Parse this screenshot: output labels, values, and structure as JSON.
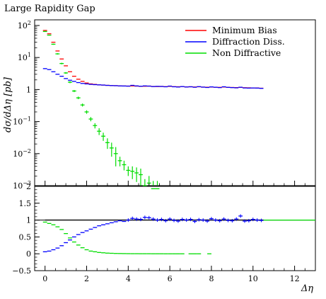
{
  "title": "Large Rapidity Gap",
  "chart_data": {
    "type": "line",
    "title": "Large Rapidity Gap",
    "xlabel": "Δη",
    "ylabel": "dσ/dΔη [pb]",
    "ratio_label_visible": false,
    "xlim": [
      -0.5,
      13
    ],
    "x_ticks": [
      "0",
      "2",
      "4",
      "6",
      "8",
      "10",
      "12"
    ],
    "top": {
      "yscale": "log",
      "ylim": [
        0.001,
        150
      ],
      "y_ticks": [
        "10^2",
        "10^1",
        "1",
        "10^-1",
        "10^-2",
        "10^-3"
      ],
      "series": [
        {
          "name": "Minimum Bias",
          "color": "#ff0000",
          "x": [
            0.0,
            0.2,
            0.4,
            0.6,
            0.8,
            1.0,
            1.2,
            1.4,
            1.6,
            1.8,
            2.0,
            2.2,
            2.4,
            2.6,
            2.8,
            3.0,
            3.2,
            3.4,
            3.6,
            3.8,
            4.0,
            4.2,
            4.4,
            4.6,
            4.8,
            5.0,
            5.2,
            5.4,
            5.6,
            5.8,
            6.0,
            6.2,
            6.4,
            6.6,
            6.8,
            7.0,
            7.2,
            7.4,
            7.6,
            7.8,
            8.0,
            8.2,
            8.4,
            8.6,
            8.8,
            9.0,
            9.2,
            9.4,
            9.6,
            9.8,
            10.0,
            10.2,
            10.4
          ],
          "y": [
            70,
            55,
            30,
            16,
            9.0,
            5.5,
            3.6,
            2.6,
            2.1,
            1.8,
            1.6,
            1.5,
            1.45,
            1.4,
            1.38,
            1.35,
            1.33,
            1.32,
            1.3,
            1.29,
            1.28,
            1.3,
            1.28,
            1.26,
            1.27,
            1.28,
            1.25,
            1.24,
            1.25,
            1.23,
            1.26,
            1.23,
            1.22,
            1.24,
            1.21,
            1.22,
            1.2,
            1.22,
            1.19,
            1.18,
            1.2,
            1.18,
            1.17,
            1.2,
            1.17,
            1.16,
            1.15,
            1.17,
            1.14,
            1.13,
            1.12,
            1.12,
            1.1
          ]
        },
        {
          "name": "Diffraction Diss.",
          "color": "#0000ff",
          "x": [
            0.0,
            0.2,
            0.4,
            0.6,
            0.8,
            1.0,
            1.2,
            1.4,
            1.6,
            1.8,
            2.0,
            2.2,
            2.4,
            2.6,
            2.8,
            3.0,
            3.2,
            3.4,
            3.6,
            3.8,
            4.0,
            4.2,
            4.4,
            4.6,
            4.8,
            5.0,
            5.2,
            5.4,
            5.6,
            5.8,
            6.0,
            6.2,
            6.4,
            6.6,
            6.8,
            7.0,
            7.2,
            7.4,
            7.6,
            7.8,
            8.0,
            8.2,
            8.4,
            8.6,
            8.8,
            9.0,
            9.2,
            9.4,
            9.6,
            9.8,
            10.0,
            10.2,
            10.4
          ],
          "y": [
            4.5,
            4.2,
            3.6,
            3.0,
            2.6,
            2.2,
            1.95,
            1.8,
            1.65,
            1.55,
            1.5,
            1.45,
            1.42,
            1.4,
            1.38,
            1.35,
            1.33,
            1.32,
            1.3,
            1.29,
            1.28,
            1.35,
            1.3,
            1.27,
            1.3,
            1.28,
            1.24,
            1.26,
            1.25,
            1.22,
            1.28,
            1.22,
            1.2,
            1.24,
            1.2,
            1.22,
            1.18,
            1.23,
            1.19,
            1.16,
            1.21,
            1.18,
            1.15,
            1.22,
            1.17,
            1.15,
            1.13,
            1.18,
            1.12,
            1.11,
            1.12,
            1.11,
            1.09
          ]
        },
        {
          "name": "Non Diffractive",
          "color": "#00dd00",
          "x": [
            0.0,
            0.2,
            0.4,
            0.6,
            0.8,
            1.0,
            1.2,
            1.4,
            1.6,
            1.8,
            2.0,
            2.2,
            2.4,
            2.6,
            2.8,
            3.0,
            3.2,
            3.4,
            3.6,
            3.8,
            4.0,
            4.2,
            4.4,
            4.6,
            4.8,
            5.0,
            5.2,
            5.4,
            5.6,
            5.8,
            6.0,
            6.2,
            6.4,
            6.6,
            7.0,
            7.2,
            7.4,
            7.9
          ],
          "y": [
            65,
            50,
            26,
            13,
            6.5,
            3.3,
            1.7,
            0.9,
            0.55,
            0.33,
            0.2,
            0.12,
            0.075,
            0.05,
            0.035,
            0.022,
            0.015,
            0.01,
            0.006,
            0.0045,
            0.003,
            0.0028,
            0.0025,
            0.0022,
            0.001,
            0.0012,
            0.0008,
            0.0008,
            0.0005,
            0.0004,
            0.0004,
            0.0002,
            0.0004,
            0.0005,
            0.0005,
            0.0005,
            0.0005,
            0.00025
          ],
          "yerr": [
            2,
            1.5,
            1,
            0.6,
            0.35,
            0.2,
            0.12,
            0.07,
            0.05,
            0.035,
            0.025,
            0.018,
            0.014,
            0.012,
            0.01,
            0.008,
            0.007,
            0.006,
            0.002,
            0.0015,
            0.001,
            0.0012,
            0.0012,
            0.0012,
            0.0006,
            0.0008,
            0.0006,
            0.0006,
            0.0004,
            0.0003,
            0.0004,
            0.0002,
            0.0004,
            0.0005,
            0.0004,
            0.0004,
            0.0004,
            0.0003
          ]
        }
      ]
    },
    "ratio": {
      "ylim": [
        -0.5,
        2
      ],
      "y_ticks": [
        "-0.5",
        "0",
        "0.5",
        "1",
        "1.5",
        "2"
      ],
      "reference_band": [
        0.97,
        1.03
      ],
      "series": [
        {
          "name": "Diffraction Diss.",
          "color": "#0000ff",
          "x": [
            0.0,
            0.2,
            0.4,
            0.6,
            0.8,
            1.0,
            1.2,
            1.4,
            1.6,
            1.8,
            2.0,
            2.2,
            2.4,
            2.6,
            2.8,
            3.0,
            3.2,
            3.4,
            3.6,
            3.8,
            4.0,
            4.2,
            4.4,
            4.6,
            4.8,
            5.0,
            5.2,
            5.4,
            5.6,
            5.8,
            6.0,
            6.2,
            6.4,
            6.6,
            6.8,
            7.0,
            7.2,
            7.4,
            7.6,
            7.8,
            8.0,
            8.2,
            8.4,
            8.6,
            8.8,
            9.0,
            9.2,
            9.4,
            9.6,
            9.8,
            10.0,
            10.2,
            10.4
          ],
          "y": [
            0.06,
            0.08,
            0.12,
            0.17,
            0.24,
            0.33,
            0.41,
            0.5,
            0.57,
            0.63,
            0.68,
            0.73,
            0.78,
            0.83,
            0.86,
            0.89,
            0.92,
            0.95,
            0.98,
            0.96,
            1.0,
            1.05,
            1.03,
            1.02,
            1.08,
            1.07,
            1.03,
            1.0,
            1.02,
            0.98,
            1.03,
            0.99,
            0.97,
            1.02,
            1.0,
            1.02,
            0.96,
            1.01,
            1.0,
            0.97,
            1.04,
            1.0,
            0.98,
            1.03,
            0.99,
            0.98,
            1.03,
            1.12,
            0.97,
            0.98,
            1.02,
            1.0,
            0.99
          ]
        },
        {
          "name": "Non Diffractive",
          "color": "#00dd00",
          "x": [
            0.0,
            0.2,
            0.4,
            0.6,
            0.8,
            1.0,
            1.2,
            1.4,
            1.6,
            1.8,
            2.0,
            2.2,
            2.4,
            2.6,
            2.8,
            3.0,
            3.2,
            3.4,
            3.6,
            3.8,
            4.0,
            4.2,
            4.4,
            4.6,
            4.8,
            5.0,
            5.2,
            5.4,
            5.6,
            5.8,
            6.0,
            6.2,
            6.4,
            6.6,
            7.0,
            7.2,
            7.4,
            7.9
          ],
          "y": [
            0.94,
            0.9,
            0.86,
            0.8,
            0.72,
            0.6,
            0.47,
            0.35,
            0.26,
            0.18,
            0.12,
            0.08,
            0.06,
            0.04,
            0.03,
            0.02,
            0.015,
            0.01,
            0.008,
            0.006,
            0.004,
            0.003,
            0.003,
            0.002,
            0.002,
            0.002,
            0.001,
            0.001,
            0.001,
            0.0,
            0.0,
            0.0,
            0.0,
            0.0,
            0.0,
            0.0,
            0.0,
            0.0
          ]
        }
      ]
    },
    "legend_position": "top-right",
    "grid": false
  }
}
